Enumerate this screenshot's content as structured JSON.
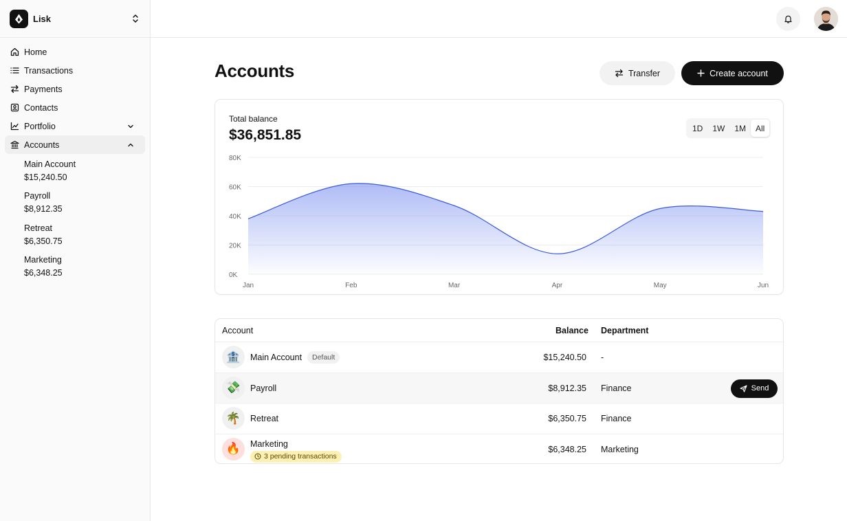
{
  "workspace": {
    "name": "Lisk"
  },
  "nav": [
    {
      "label": "Home",
      "icon": "home-icon"
    },
    {
      "label": "Transactions",
      "icon": "list-icon"
    },
    {
      "label": "Payments",
      "icon": "arrows-icon"
    },
    {
      "label": "Contacts",
      "icon": "contact-card-icon"
    },
    {
      "label": "Portfolio",
      "icon": "line-chart-icon",
      "expanded": false
    },
    {
      "label": "Accounts",
      "icon": "bank-icon",
      "expanded": true
    }
  ],
  "sidebar_accounts": [
    {
      "name": "Main Account",
      "balance": "$15,240.50"
    },
    {
      "name": "Payroll",
      "balance": "$8,912.35"
    },
    {
      "name": "Retreat",
      "balance": "$6,350.75"
    },
    {
      "name": "Marketing",
      "balance": "$6,348.25"
    }
  ],
  "page": {
    "title": "Accounts",
    "transfer_label": "Transfer",
    "create_label": "Create account"
  },
  "balance": {
    "label": "Total balance",
    "value": "$36,851.85",
    "ranges": [
      "1D",
      "1W",
      "1M",
      "All"
    ],
    "selected_range": "All"
  },
  "chart_data": {
    "type": "area",
    "x": [
      "Jan",
      "Feb",
      "Mar",
      "Apr",
      "May",
      "Jun"
    ],
    "y_ticks": [
      "80K",
      "60K",
      "40K",
      "20K",
      "0K"
    ],
    "ylim": [
      0,
      80000
    ],
    "series": [
      {
        "values": [
          38000,
          62000,
          47000,
          14000,
          45000,
          43000
        ]
      }
    ],
    "line_color": "#3b5bdb",
    "fill_color": "#6d85ee"
  },
  "table": {
    "headers": {
      "account": "Account",
      "balance": "Balance",
      "department": "Department"
    },
    "rows": [
      {
        "icon": "bank-emoji-icon",
        "glyph": "🏦",
        "name": "Main Account",
        "badge": "Default",
        "balance": "$15,240.50",
        "department": "-"
      },
      {
        "icon": "money-emoji-icon",
        "glyph": "💸",
        "name": "Payroll",
        "balance": "$8,912.35",
        "department": "Finance",
        "action": "Send"
      },
      {
        "icon": "palm-tree-emoji-icon",
        "glyph": "🌴",
        "name": "Retreat",
        "balance": "$6,350.75",
        "department": "Finance"
      },
      {
        "icon": "fire-emoji-icon",
        "glyph": "🔥",
        "name": "Marketing",
        "pending": "3 pending transactions",
        "balance": "$6,348.25",
        "department": "Marketing"
      }
    ]
  }
}
